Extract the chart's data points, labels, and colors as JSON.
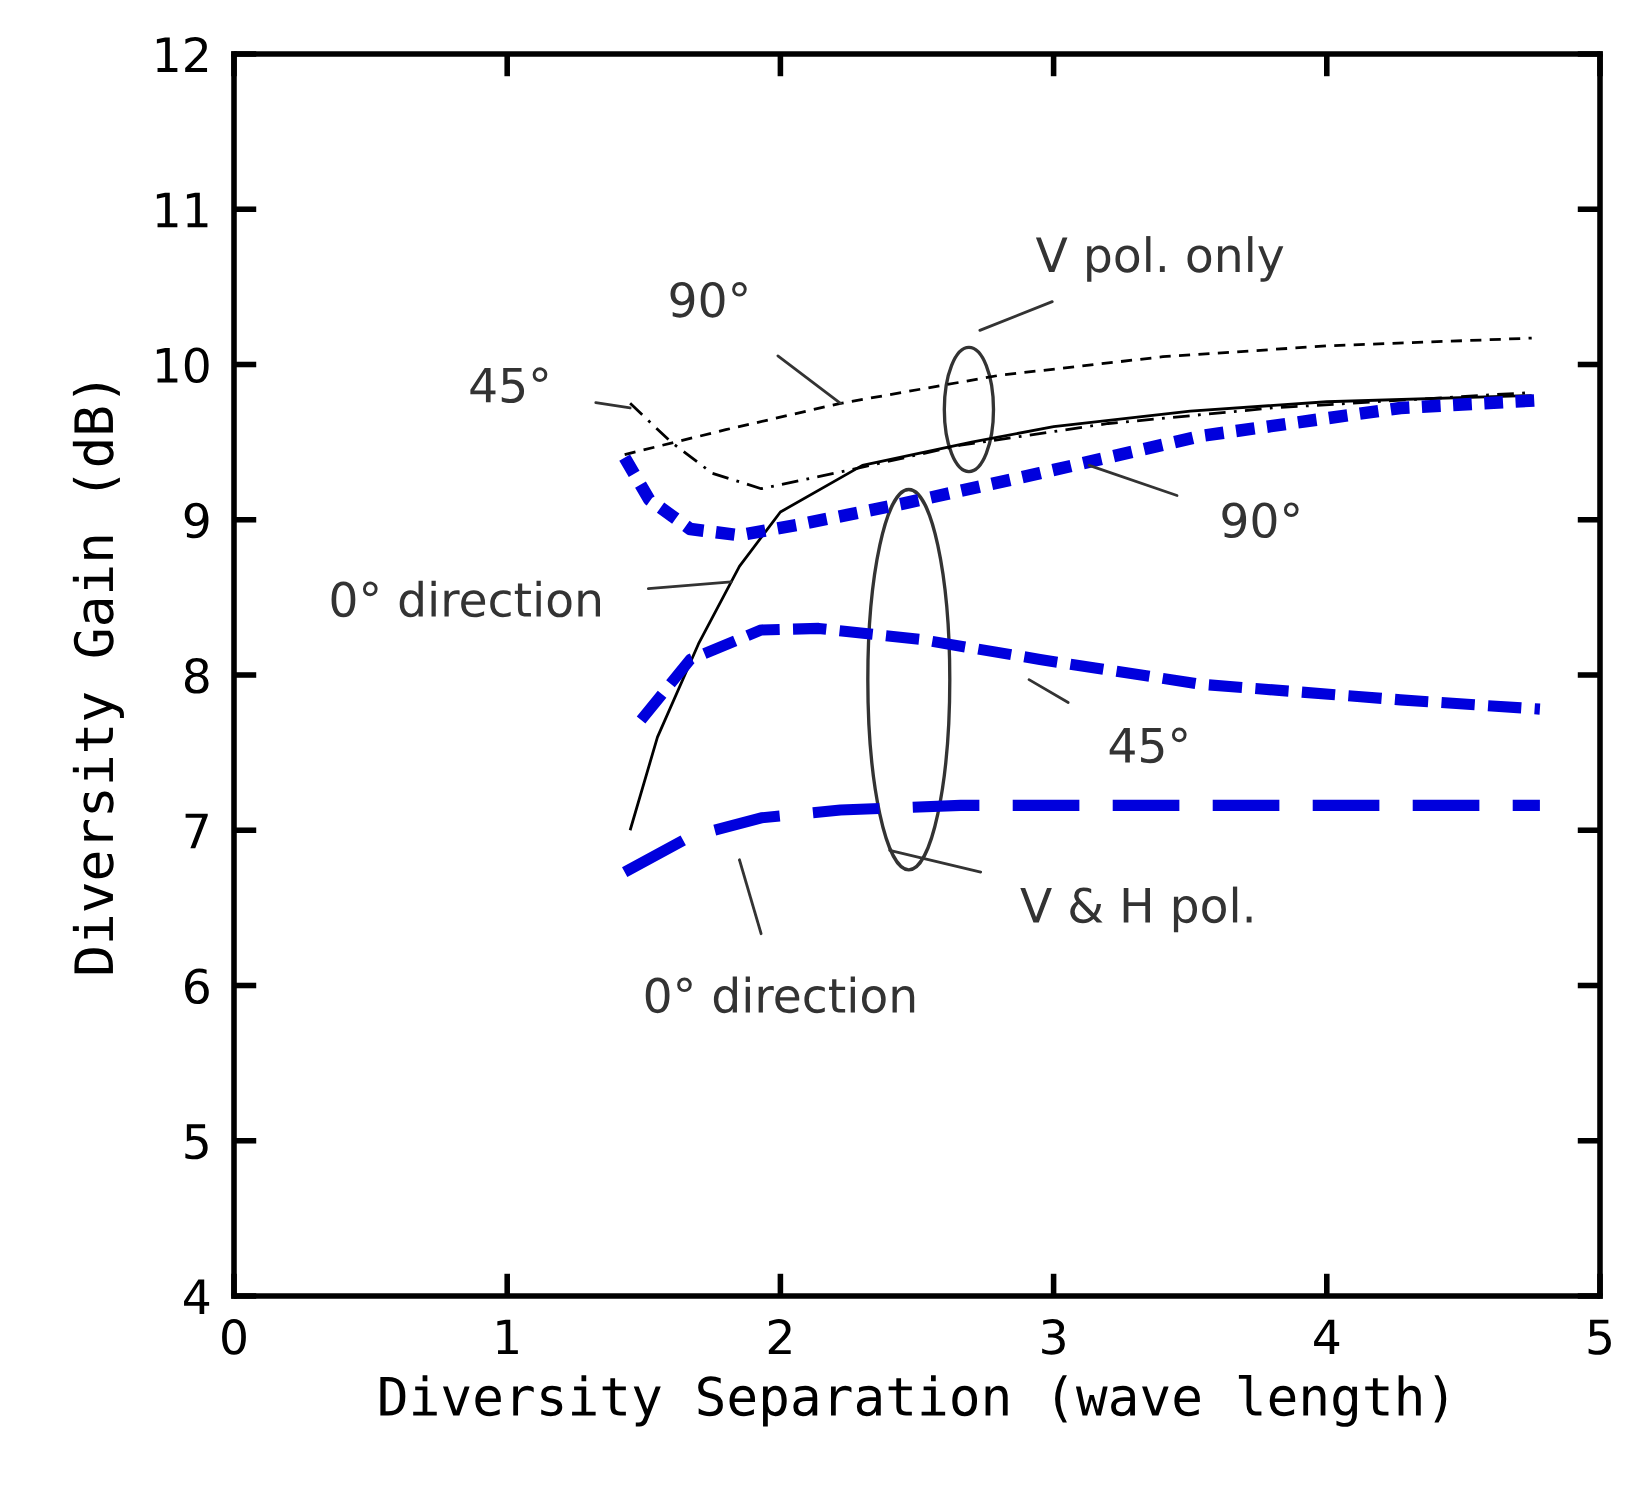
{
  "chart_data": {
    "type": "line",
    "xlabel": "Diversity Separation (wave length)",
    "ylabel": "Diversity Gain (dB)",
    "xlim": [
      0,
      5
    ],
    "xticks": [
      0,
      1,
      2,
      3,
      4,
      5
    ],
    "ylim": [
      4,
      12
    ],
    "yticks": [
      4,
      5,
      6,
      7,
      8,
      9,
      10,
      11,
      12
    ],
    "grid": false,
    "legend": false,
    "marker": "none",
    "series": [
      {
        "color": "#000000",
        "line_style": "solid",
        "x": [
          1.45,
          1.55,
          1.7,
          1.85,
          2.0,
          2.3,
          2.7,
          3.0,
          3.5,
          4.0,
          4.75
        ],
        "values": [
          7.0,
          7.6,
          8.2,
          8.7,
          9.05,
          9.35,
          9.5,
          9.6,
          9.7,
          9.76,
          9.8
        ]
      },
      {
        "color": "#000000",
        "line_style": "dashdot",
        "x": [
          1.45,
          1.6,
          1.75,
          1.93,
          2.2,
          2.66,
          3.2,
          3.8,
          4.75
        ],
        "values": [
          9.75,
          9.5,
          9.3,
          9.2,
          9.3,
          9.48,
          9.62,
          9.72,
          9.82
        ]
      },
      {
        "color": "#000000",
        "line_style": "dashed",
        "x": [
          1.43,
          1.8,
          2.22,
          2.8,
          3.4,
          4.0,
          4.75
        ],
        "values": [
          9.42,
          9.58,
          9.75,
          9.93,
          10.05,
          10.12,
          10.17
        ]
      },
      {
        "color": "#0000dd",
        "line_style": "dotted",
        "x": [
          1.43,
          1.52,
          1.67,
          1.85,
          2.07,
          2.44,
          2.95,
          3.54,
          4.27,
          4.78
        ],
        "values": [
          9.4,
          9.13,
          8.94,
          8.9,
          8.97,
          9.1,
          9.3,
          9.54,
          9.72,
          9.77
        ]
      },
      {
        "color": "#0000dd",
        "line_style": "dashed",
        "x": [
          1.49,
          1.67,
          1.93,
          2.14,
          2.51,
          2.95,
          3.54,
          4.27,
          4.78
        ],
        "values": [
          7.71,
          8.1,
          8.29,
          8.3,
          8.23,
          8.1,
          7.94,
          7.84,
          7.78
        ]
      },
      {
        "color": "#0000dd",
        "line_style": "longdash",
        "x": [
          1.43,
          1.67,
          1.93,
          2.22,
          2.66,
          3.5,
          4.78
        ],
        "values": [
          6.73,
          6.96,
          7.08,
          7.13,
          7.16,
          7.16,
          7.16
        ]
      }
    ],
    "annotations": [
      "V pol. only",
      {
        "text": "90°",
        "x": 2.22,
        "y": 9.75
      },
      "45°",
      {
        "text": "90°",
        "x": 3.13,
        "y": 9.35
      },
      {
        "text": "0° direction",
        "x": 1.82,
        "y": 8.6
      },
      "45°",
      "V & H pol.",
      "0° direction"
    ]
  }
}
